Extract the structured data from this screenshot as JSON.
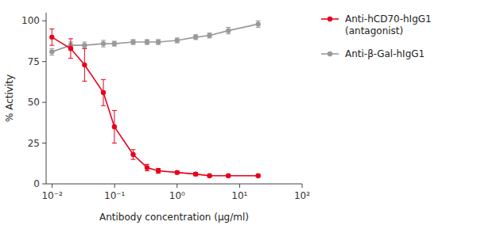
{
  "chart_data": {
    "type": "line",
    "x_label": "Antibody concentration (μg/ml)",
    "y_label": "% Activity",
    "x": [
      0.0099,
      0.0198,
      0.033,
      0.066,
      0.099,
      0.198,
      0.33,
      0.5,
      1.0,
      1.98,
      3.3,
      6.6,
      19.8
    ],
    "series": [
      {
        "name": "Anti-β-Gal-hIgG1",
        "color": "#999999",
        "marker": "circle",
        "values": [
          81,
          85,
          85,
          86,
          86,
          87,
          87,
          87,
          88,
          90,
          91,
          94,
          98
        ],
        "yerr": [
          2,
          2,
          2,
          2,
          1.5,
          1.5,
          1.5,
          1.5,
          1.5,
          1.5,
          1.5,
          2,
          2
        ]
      },
      {
        "name": "Anti-hCD70-hIgG1\n(antagonist)",
        "color": "#e8001c",
        "marker": "circle",
        "values": [
          90,
          83,
          73,
          56,
          35,
          18,
          10,
          8,
          7,
          6,
          5,
          5,
          5
        ],
        "yerr": [
          5,
          6,
          10,
          8,
          10,
          3,
          2,
          1.5,
          1,
          1,
          0.8,
          0.8,
          0.8
        ]
      }
    ],
    "log": "x",
    "xlim": [
      0.008,
      100
    ],
    "xticks": [
      {
        "value": 0.01,
        "label": "10⁻²"
      },
      {
        "value": 0.1,
        "label": "10⁻¹"
      },
      {
        "value": 1,
        "label": "10⁰"
      },
      {
        "value": 10,
        "label": "10¹"
      },
      {
        "value": 100,
        "label": "10²"
      }
    ],
    "ylim": [
      0,
      105
    ],
    "yticks": [
      0,
      25,
      50,
      75,
      100
    ],
    "grid": false,
    "legend": "right"
  }
}
